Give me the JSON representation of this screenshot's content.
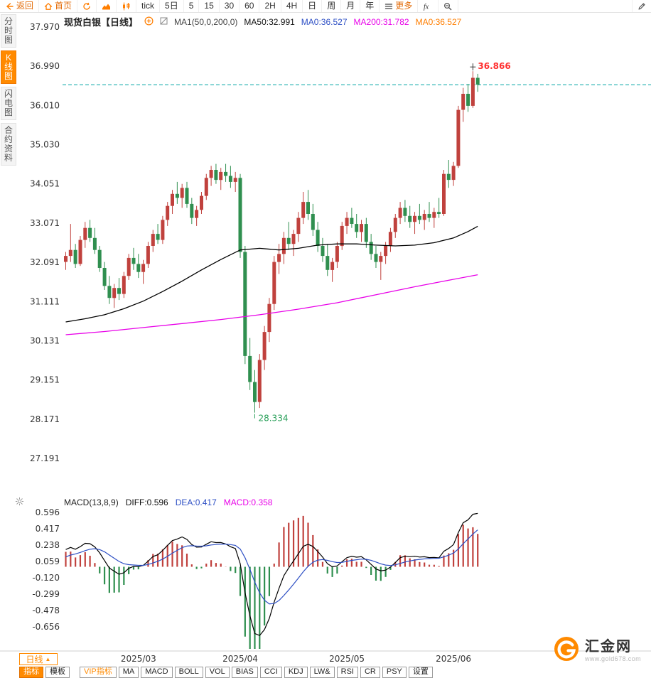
{
  "colors": {
    "accent": "#ff8a00",
    "up": "#c0413d",
    "down": "#2f8f4f",
    "ma50": "#000000",
    "ma200": "#e800e8",
    "diff_line": "#000000",
    "dea_line": "#2d4fc4",
    "current_price_line": "#00a3a3",
    "annotation_high": "#ff2f2f",
    "annotation_low": "#2aa05a",
    "axis_text": "#333333"
  },
  "toolbar": {
    "items": [
      {
        "name": "back-button",
        "icon": "back",
        "label": "返回",
        "label_color": "#e36c09"
      },
      {
        "name": "home-button",
        "icon": "home",
        "label": "首页",
        "label_color": "#e36c09"
      },
      {
        "name": "refresh-button",
        "icon": "refresh"
      },
      {
        "name": "area-chart-button",
        "icon": "area-chart"
      },
      {
        "name": "candle-chart-button",
        "icon": "candle-chart"
      },
      {
        "name": "timeframe-tick-button",
        "label": "tick"
      },
      {
        "name": "timeframe-5d-button",
        "label": "5日"
      },
      {
        "name": "timeframe-5-button",
        "label": "5"
      },
      {
        "name": "timeframe-15-button",
        "label": "15"
      },
      {
        "name": "timeframe-30-button",
        "label": "30"
      },
      {
        "name": "timeframe-60-button",
        "label": "60"
      },
      {
        "name": "timeframe-2h-button",
        "label": "2H"
      },
      {
        "name": "timeframe-4h-button",
        "label": "4H"
      },
      {
        "name": "timeframe-day-button",
        "label": "日"
      },
      {
        "name": "timeframe-week-button",
        "label": "周"
      },
      {
        "name": "timeframe-month-button",
        "label": "月"
      },
      {
        "name": "timeframe-year-button",
        "label": "年"
      },
      {
        "name": "more-button",
        "icon": "menu",
        "label": "更多",
        "label_color": "#e36c09"
      },
      {
        "name": "fx-button",
        "icon": "fx"
      },
      {
        "name": "zoom-out-button",
        "icon": "zoom-out"
      },
      {
        "name": "draw-button",
        "icon": "pencil",
        "push_right": true
      }
    ]
  },
  "sidebar": {
    "items": [
      {
        "name": "sidebar-item-time-chart",
        "label": "分时图",
        "active": false
      },
      {
        "name": "sidebar-item-kline-chart",
        "label": "K线图",
        "active": true
      },
      {
        "name": "sidebar-item-lightning-chart",
        "label": "闪电图",
        "active": false
      },
      {
        "name": "sidebar-item-contract-info",
        "label": "合约资料",
        "active": false
      }
    ]
  },
  "chart_header": {
    "symbol": "现货白银【日线】",
    "ma_group_label": "MA1(50,0,200,0)",
    "ma_values": [
      {
        "label": "MA50:32.991",
        "color": "#111111"
      },
      {
        "label": "MA0:36.527",
        "color": "#2d4fc4"
      },
      {
        "label": "MA200:31.782",
        "color": "#e800e8"
      },
      {
        "label": "MA0:36.527",
        "color": "#ff7e00"
      }
    ]
  },
  "macd_header": {
    "title": "MACD(13,8,9)",
    "values": [
      {
        "label": "DIFF:0.596",
        "color": "#111111"
      },
      {
        "label": "DEA:0.417",
        "color": "#2d4fc4"
      },
      {
        "label": "MACD:0.358",
        "color": "#e800e8"
      }
    ]
  },
  "bottom": {
    "period_label": "日线",
    "period_caret": "▲",
    "tabs": [
      {
        "name": "tab-indicators",
        "label": "指标",
        "active": true
      },
      {
        "name": "tab-templates",
        "label": "模板"
      },
      {
        "name": "tab-vip-indicators",
        "label": "VIP指标",
        "vip": true,
        "gap_before": true
      },
      {
        "name": "tab-ma",
        "label": "MA"
      },
      {
        "name": "tab-macd",
        "label": "MACD"
      },
      {
        "name": "tab-boll",
        "label": "BOLL"
      },
      {
        "name": "tab-vol",
        "label": "VOL"
      },
      {
        "name": "tab-bias",
        "label": "BIAS"
      },
      {
        "name": "tab-cci",
        "label": "CCI"
      },
      {
        "name": "tab-kdj",
        "label": "KDJ"
      },
      {
        "name": "tab-lw",
        "label": "LW&"
      },
      {
        "name": "tab-rsi",
        "label": "RSI"
      },
      {
        "name": "tab-cr",
        "label": "CR"
      },
      {
        "name": "tab-psy",
        "label": "PSY"
      },
      {
        "name": "tab-settings",
        "label": "设置"
      }
    ]
  },
  "logo": {
    "name": "汇金网",
    "url": "www.gold678.com"
  },
  "chart_data": {
    "type": "candlestick+macd",
    "title": "现货白银 日线",
    "y_axis_labels": [
      "37.970",
      "36.990",
      "36.010",
      "35.030",
      "34.051",
      "33.071",
      "32.091",
      "31.111",
      "30.131",
      "29.151",
      "28.171",
      "27.191"
    ],
    "macd_axis_labels": [
      "0.596",
      "0.417",
      "0.238",
      "0.059",
      "-0.120",
      "-0.299",
      "-0.478",
      "-0.656"
    ],
    "x_ticks": [
      {
        "label": "2025/03",
        "index": 15
      },
      {
        "label": "2025/04",
        "index": 36
      },
      {
        "label": "2025/05",
        "index": 58
      },
      {
        "label": "2025/06",
        "index": 80
      }
    ],
    "current_price": 36.527,
    "annotations": {
      "high": {
        "index": 84,
        "price": 36.866,
        "label": "36.866"
      },
      "low": {
        "index": 39,
        "price": 28.334,
        "label": "28.334"
      }
    },
    "macd_params": {
      "fast": 8,
      "slow": 13,
      "signal": 9
    },
    "ma50_points": [
      [
        0,
        30.6
      ],
      [
        4,
        30.68
      ],
      [
        8,
        30.78
      ],
      [
        12,
        30.93
      ],
      [
        16,
        31.12
      ],
      [
        20,
        31.36
      ],
      [
        24,
        31.62
      ],
      [
        28,
        31.9
      ],
      [
        32,
        32.16
      ],
      [
        36,
        32.4
      ],
      [
        40,
        32.44
      ],
      [
        44,
        32.4
      ],
      [
        48,
        32.44
      ],
      [
        52,
        32.52
      ],
      [
        56,
        32.55
      ],
      [
        60,
        32.55
      ],
      [
        64,
        32.52
      ],
      [
        68,
        32.5
      ],
      [
        72,
        32.52
      ],
      [
        76,
        32.58
      ],
      [
        80,
        32.7
      ],
      [
        83,
        32.86
      ],
      [
        85,
        32.99
      ]
    ],
    "ma200_points": [
      [
        0,
        30.28
      ],
      [
        8,
        30.36
      ],
      [
        16,
        30.46
      ],
      [
        24,
        30.56
      ],
      [
        32,
        30.66
      ],
      [
        40,
        30.78
      ],
      [
        48,
        30.92
      ],
      [
        56,
        31.08
      ],
      [
        64,
        31.28
      ],
      [
        72,
        31.48
      ],
      [
        78,
        31.62
      ],
      [
        85,
        31.78
      ]
    ],
    "candles": [
      [
        32.1,
        32.35,
        31.9,
        32.25
      ],
      [
        32.25,
        33.05,
        32.1,
        32.4
      ],
      [
        32.4,
        32.55,
        31.95,
        32.05
      ],
      [
        32.05,
        32.75,
        32.0,
        32.65
      ],
      [
        32.65,
        33.1,
        32.45,
        32.95
      ],
      [
        32.95,
        33.15,
        32.6,
        32.7
      ],
      [
        32.7,
        32.95,
        32.3,
        32.4
      ],
      [
        32.4,
        32.5,
        31.85,
        31.95
      ],
      [
        31.95,
        32.1,
        31.4,
        31.5
      ],
      [
        31.5,
        31.75,
        31.05,
        31.2
      ],
      [
        31.2,
        31.55,
        30.95,
        31.45
      ],
      [
        31.45,
        31.7,
        31.15,
        31.3
      ],
      [
        31.3,
        31.85,
        31.2,
        31.75
      ],
      [
        31.75,
        32.3,
        31.65,
        32.2
      ],
      [
        32.2,
        32.45,
        31.9,
        32.05
      ],
      [
        32.05,
        32.3,
        31.7,
        31.85
      ],
      [
        31.85,
        32.15,
        31.55,
        32.05
      ],
      [
        32.05,
        32.6,
        31.95,
        32.5
      ],
      [
        32.5,
        32.9,
        32.35,
        32.8
      ],
      [
        32.8,
        33.05,
        32.55,
        32.65
      ],
      [
        32.65,
        33.25,
        32.55,
        33.15
      ],
      [
        33.15,
        33.6,
        33.0,
        33.5
      ],
      [
        33.5,
        33.9,
        33.3,
        33.8
      ],
      [
        33.8,
        34.1,
        33.55,
        33.7
      ],
      [
        33.7,
        34.05,
        33.45,
        33.95
      ],
      [
        33.95,
        34.1,
        33.45,
        33.55
      ],
      [
        33.55,
        33.7,
        33.05,
        33.2
      ],
      [
        33.2,
        33.5,
        33.0,
        33.4
      ],
      [
        33.4,
        33.85,
        33.3,
        33.75
      ],
      [
        33.75,
        34.3,
        33.65,
        34.2
      ],
      [
        34.2,
        34.5,
        34.0,
        34.4
      ],
      [
        34.4,
        34.55,
        34.05,
        34.15
      ],
      [
        34.15,
        34.45,
        33.9,
        34.35
      ],
      [
        34.35,
        34.55,
        34.1,
        34.25
      ],
      [
        34.25,
        34.5,
        33.95,
        34.1
      ],
      [
        34.1,
        34.35,
        33.85,
        34.2
      ],
      [
        34.2,
        34.3,
        32.2,
        32.35
      ],
      [
        32.35,
        32.5,
        29.55,
        29.75
      ],
      [
        29.75,
        30.2,
        28.9,
        29.1
      ],
      [
        29.1,
        29.4,
        28.334,
        28.6
      ],
      [
        28.6,
        29.8,
        28.45,
        29.65
      ],
      [
        29.65,
        30.5,
        29.4,
        30.35
      ],
      [
        30.35,
        31.2,
        30.1,
        31.05
      ],
      [
        31.05,
        32.25,
        30.9,
        32.1
      ],
      [
        32.1,
        32.55,
        31.8,
        32.3
      ],
      [
        32.3,
        32.85,
        32.05,
        32.7
      ],
      [
        32.7,
        33.1,
        32.4,
        32.55
      ],
      [
        32.55,
        32.9,
        32.25,
        32.8
      ],
      [
        32.8,
        33.35,
        32.6,
        33.2
      ],
      [
        33.2,
        33.85,
        33.05,
        33.6
      ],
      [
        33.6,
        33.9,
        33.15,
        33.3
      ],
      [
        33.3,
        33.55,
        32.75,
        32.9
      ],
      [
        32.9,
        33.1,
        32.35,
        32.5
      ],
      [
        32.5,
        32.7,
        32.1,
        32.25
      ],
      [
        32.25,
        32.55,
        31.75,
        31.9
      ],
      [
        31.9,
        32.2,
        31.6,
        32.1
      ],
      [
        32.1,
        32.6,
        31.95,
        32.5
      ],
      [
        32.5,
        33.1,
        32.4,
        33.0
      ],
      [
        33.0,
        33.35,
        32.8,
        33.2
      ],
      [
        33.2,
        33.45,
        32.95,
        33.05
      ],
      [
        33.05,
        33.3,
        32.7,
        32.85
      ],
      [
        32.85,
        33.15,
        32.6,
        33.05
      ],
      [
        33.05,
        33.2,
        32.45,
        32.6
      ],
      [
        32.6,
        32.8,
        32.15,
        32.3
      ],
      [
        32.3,
        32.5,
        31.95,
        32.1
      ],
      [
        32.1,
        32.35,
        31.65,
        32.25
      ],
      [
        32.25,
        32.6,
        32.05,
        32.5
      ],
      [
        32.5,
        32.95,
        32.35,
        32.85
      ],
      [
        32.85,
        33.3,
        32.7,
        33.2
      ],
      [
        33.2,
        33.6,
        33.05,
        33.45
      ],
      [
        33.45,
        33.65,
        33.1,
        33.25
      ],
      [
        33.25,
        33.5,
        32.95,
        33.1
      ],
      [
        33.1,
        33.35,
        32.8,
        33.25
      ],
      [
        33.25,
        33.55,
        33.05,
        33.15
      ],
      [
        33.15,
        33.4,
        32.9,
        33.3
      ],
      [
        33.3,
        33.6,
        33.1,
        33.2
      ],
      [
        33.2,
        33.45,
        32.95,
        33.35
      ],
      [
        33.35,
        33.7,
        33.2,
        33.3
      ],
      [
        33.3,
        34.4,
        33.25,
        34.3
      ],
      [
        34.3,
        34.65,
        33.95,
        34.15
      ],
      [
        34.15,
        34.6,
        34.0,
        34.5
      ],
      [
        34.5,
        36.0,
        34.45,
        35.9
      ],
      [
        35.9,
        36.45,
        35.6,
        36.3
      ],
      [
        36.3,
        36.55,
        35.85,
        36.0
      ],
      [
        36.0,
        36.866,
        35.95,
        36.7
      ],
      [
        36.7,
        36.8,
        36.35,
        36.53
      ]
    ]
  }
}
